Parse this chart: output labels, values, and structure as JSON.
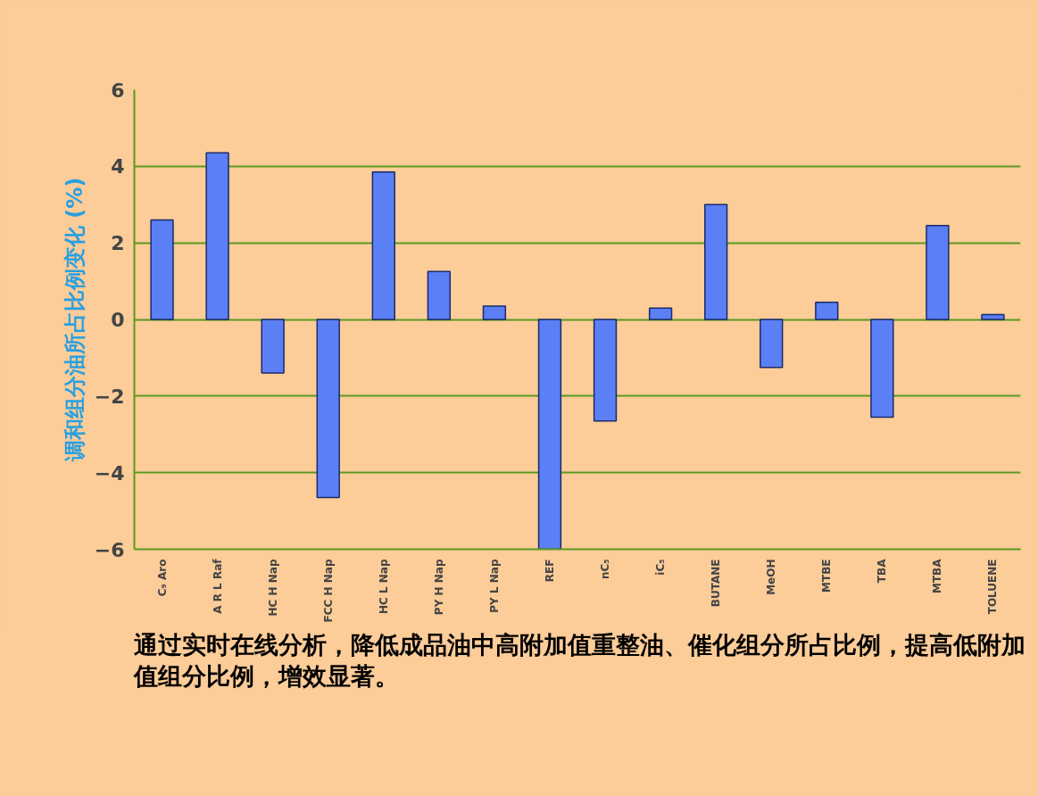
{
  "chart_data": {
    "type": "bar",
    "ylabel": "调和组分油所占比例变化 (%)",
    "categories": [
      "C₉ Aro",
      "A R L Raf",
      "HC H Nap",
      "FCC H Nap",
      "HC L Nap",
      "PY H Nap",
      "PY L Nap",
      "REF",
      "nC₅",
      "iC₅",
      "BUTANE",
      "MeOH",
      "MTBE",
      "TBA",
      "MTBA",
      "TOLUENE"
    ],
    "values": [
      2.6,
      4.35,
      -1.4,
      -4.65,
      3.85,
      1.25,
      0.35,
      -6,
      -2.65,
      0.3,
      3.0,
      -1.25,
      0.45,
      -2.55,
      2.45,
      0.13
    ],
    "color": "#5b7ff5",
    "ylim": [
      -6,
      6
    ],
    "yticks": [
      -6,
      -4,
      -2,
      0,
      2,
      4,
      6
    ],
    "grid": "y",
    "annotations": [
      "通过实时在线分析，降低成品油中高附加值重整油、催化组分所占比例，提高低附加值组分比例，增效显著。"
    ]
  }
}
